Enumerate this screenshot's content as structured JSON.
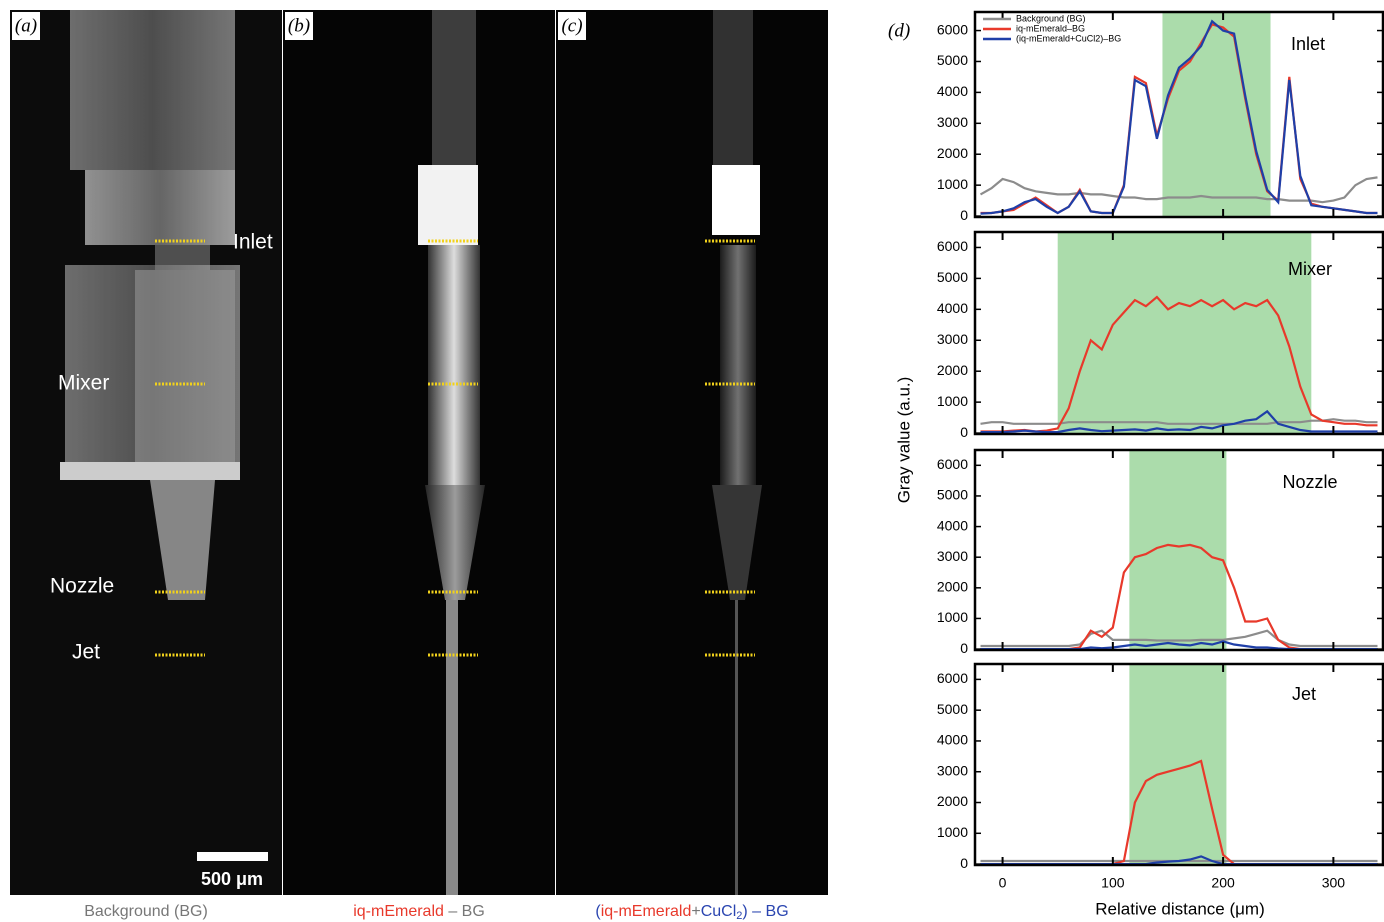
{
  "panels": [
    {
      "label": "(a)",
      "caption": [
        "Background (BG)"
      ]
    },
    {
      "label": "(b)",
      "caption": [
        "iq-mEmerald",
        " – BG"
      ]
    },
    {
      "label": "(c)",
      "caption": [
        "(",
        "iq-mEmerald",
        "+",
        "CuCl",
        "2",
        ") – BG"
      ]
    }
  ],
  "panel_a_labels": [
    "Inlet",
    "Mixer",
    "Nozzle",
    "Jet"
  ],
  "scale_bar": "500 μm",
  "figure": {
    "label": "(d)",
    "ylabel": "Gray value (a.u.)",
    "xlabel": "Relative distance (μm)"
  },
  "chart_data": [
    {
      "type": "line",
      "annotation": "Inlet",
      "legend": "upper left",
      "xtick_labels": false,
      "shade": [
        145,
        243
      ],
      "shade_color": "#8fd08f",
      "x": [
        -20,
        -10,
        0,
        10,
        20,
        30,
        40,
        50,
        60,
        70,
        80,
        90,
        100,
        110,
        120,
        130,
        140,
        150,
        160,
        170,
        180,
        190,
        200,
        210,
        220,
        230,
        240,
        250,
        260,
        270,
        280,
        290,
        300,
        310,
        320,
        330,
        340
      ],
      "xlim": [
        -25,
        345
      ],
      "xticks": [
        0,
        100,
        200,
        300
      ],
      "ylim": [
        -30,
        6600
      ],
      "yticks": [
        0,
        1000,
        2000,
        3000,
        4000,
        5000,
        6000
      ],
      "series": [
        {
          "name": "Background (BG)",
          "color": "#8c8c8c",
          "values": [
            700,
            900,
            1200,
            1100,
            900,
            800,
            750,
            700,
            700,
            750,
            700,
            700,
            650,
            600,
            600,
            550,
            550,
            600,
            600,
            600,
            650,
            600,
            600,
            600,
            600,
            600,
            550,
            550,
            500,
            500,
            500,
            450,
            500,
            600,
            1000,
            1200,
            1250
          ]
        },
        {
          "name": "iq-mEmerald–BG",
          "color": "#e8392b",
          "values": [
            100,
            100,
            150,
            200,
            400,
            600,
            350,
            100,
            300,
            850,
            150,
            100,
            100,
            1000,
            4500,
            4300,
            2600,
            3800,
            4700,
            5000,
            5600,
            6200,
            6100,
            5800,
            3800,
            2000,
            800,
            500,
            4500,
            1200,
            400,
            300,
            250,
            200,
            150,
            100,
            100
          ]
        },
        {
          "name": "(iq-mEmerald+CuCl2)–BG",
          "color": "#1f3fa8",
          "values": [
            80,
            100,
            150,
            250,
            450,
            550,
            300,
            100,
            300,
            800,
            150,
            100,
            100,
            950,
            4400,
            4200,
            2500,
            3900,
            4800,
            5100,
            5500,
            6300,
            6000,
            5900,
            3900,
            2100,
            850,
            450,
            4400,
            1300,
            350,
            300,
            250,
            200,
            150,
            100,
            100
          ]
        }
      ]
    },
    {
      "type": "line",
      "annotation": "Mixer",
      "xtick_labels": false,
      "shade": [
        50,
        280
      ],
      "shade_color": "#8fd08f",
      "x": [
        -20,
        -10,
        0,
        10,
        20,
        30,
        40,
        50,
        60,
        70,
        80,
        90,
        100,
        110,
        120,
        130,
        140,
        150,
        160,
        170,
        180,
        190,
        200,
        210,
        220,
        230,
        240,
        250,
        260,
        270,
        280,
        290,
        300,
        310,
        320,
        330,
        340
      ],
      "xlim": [
        -25,
        345
      ],
      "xticks": [
        0,
        100,
        200,
        300
      ],
      "ylim": [
        -30,
        6500
      ],
      "yticks": [
        0,
        1000,
        2000,
        3000,
        4000,
        5000,
        6000
      ],
      "series": [
        {
          "color": "#8c8c8c",
          "values": [
            300,
            350,
            350,
            300,
            300,
            300,
            300,
            300,
            350,
            350,
            350,
            350,
            350,
            350,
            350,
            350,
            350,
            300,
            300,
            300,
            300,
            300,
            300,
            300,
            300,
            300,
            300,
            350,
            350,
            350,
            400,
            400,
            450,
            400,
            400,
            350,
            350
          ]
        },
        {
          "color": "#e8392b",
          "values": [
            50,
            50,
            50,
            80,
            100,
            50,
            80,
            150,
            800,
            2000,
            3000,
            2700,
            3500,
            3900,
            4300,
            4100,
            4400,
            4000,
            4200,
            4100,
            4300,
            4100,
            4300,
            4000,
            4200,
            4100,
            4300,
            3800,
            2800,
            1500,
            600,
            400,
            350,
            300,
            300,
            250,
            250
          ]
        },
        {
          "color": "#1f3fa8",
          "values": [
            30,
            30,
            30,
            50,
            80,
            50,
            30,
            30,
            100,
            150,
            100,
            60,
            80,
            100,
            120,
            80,
            150,
            100,
            120,
            100,
            200,
            150,
            250,
            300,
            400,
            450,
            700,
            300,
            200,
            100,
            50,
            50,
            50,
            50,
            50,
            50,
            50
          ]
        }
      ]
    },
    {
      "type": "line",
      "annotation": "Nozzle",
      "xtick_labels": false,
      "shade": [
        115,
        203
      ],
      "shade_color": "#8fd08f",
      "x": [
        -20,
        -10,
        0,
        10,
        20,
        30,
        40,
        50,
        60,
        70,
        80,
        90,
        100,
        110,
        120,
        130,
        140,
        150,
        160,
        170,
        180,
        190,
        200,
        210,
        220,
        230,
        240,
        250,
        260,
        270,
        280,
        290,
        300,
        310,
        320,
        330,
        340
      ],
      "xlim": [
        -25,
        345
      ],
      "xticks": [
        0,
        100,
        200,
        300
      ],
      "ylim": [
        -30,
        6500
      ],
      "yticks": [
        0,
        1000,
        2000,
        3000,
        4000,
        5000,
        6000
      ],
      "series": [
        {
          "color": "#8c8c8c",
          "values": [
            100,
            100,
            100,
            100,
            100,
            100,
            100,
            100,
            100,
            150,
            500,
            600,
            300,
            300,
            300,
            300,
            280,
            280,
            280,
            280,
            300,
            300,
            300,
            350,
            400,
            500,
            600,
            300,
            150,
            100,
            100,
            100,
            100,
            100,
            100,
            100,
            100
          ]
        },
        {
          "color": "#e8392b",
          "values": [
            0,
            0,
            0,
            0,
            0,
            0,
            0,
            0,
            0,
            50,
            600,
            400,
            700,
            2500,
            3000,
            3100,
            3300,
            3400,
            3350,
            3400,
            3300,
            3000,
            2900,
            2000,
            900,
            900,
            1000,
            300,
            50,
            0,
            0,
            0,
            0,
            0,
            0,
            0,
            0
          ]
        },
        {
          "color": "#1f3fa8",
          "values": [
            0,
            0,
            0,
            0,
            0,
            0,
            0,
            0,
            0,
            0,
            50,
            30,
            50,
            100,
            150,
            100,
            150,
            200,
            150,
            120,
            200,
            150,
            250,
            150,
            100,
            50,
            50,
            20,
            0,
            0,
            0,
            0,
            0,
            0,
            0,
            0,
            0
          ]
        }
      ]
    },
    {
      "type": "line",
      "annotation": "Jet",
      "xtick_labels": true,
      "shade": [
        115,
        203
      ],
      "shade_color": "#8fd08f",
      "x": [
        -20,
        -10,
        0,
        10,
        20,
        30,
        40,
        50,
        60,
        70,
        80,
        90,
        100,
        110,
        120,
        130,
        140,
        150,
        160,
        170,
        180,
        190,
        200,
        210,
        220,
        230,
        240,
        250,
        260,
        270,
        280,
        290,
        300,
        310,
        320,
        330,
        340
      ],
      "xlim": [
        -25,
        345
      ],
      "xticks": [
        0,
        100,
        200,
        300
      ],
      "ylim": [
        -30,
        6500
      ],
      "yticks": [
        0,
        1000,
        2000,
        3000,
        4000,
        5000,
        6000
      ],
      "series": [
        {
          "color": "#8c8c8c",
          "values": [
            100,
            100,
            100,
            100,
            100,
            100,
            100,
            100,
            100,
            100,
            100,
            100,
            100,
            100,
            100,
            100,
            100,
            100,
            100,
            100,
            100,
            100,
            100,
            100,
            100,
            100,
            100,
            100,
            100,
            100,
            100,
            100,
            100,
            100,
            100,
            100,
            100
          ]
        },
        {
          "color": "#e8392b",
          "values": [
            0,
            0,
            0,
            0,
            0,
            0,
            0,
            0,
            0,
            0,
            0,
            0,
            0,
            100,
            2000,
            2700,
            2900,
            3000,
            3100,
            3200,
            3350,
            1800,
            300,
            0,
            0,
            0,
            0,
            0,
            0,
            0,
            0,
            0,
            0,
            0,
            0,
            0,
            0
          ]
        },
        {
          "color": "#1f3fa8",
          "values": [
            0,
            0,
            0,
            0,
            0,
            0,
            0,
            0,
            0,
            0,
            0,
            0,
            0,
            0,
            0,
            0,
            50,
            80,
            100,
            150,
            250,
            100,
            0,
            0,
            0,
            0,
            0,
            0,
            0,
            0,
            0,
            0,
            0,
            0,
            0,
            0,
            0
          ]
        }
      ]
    }
  ]
}
